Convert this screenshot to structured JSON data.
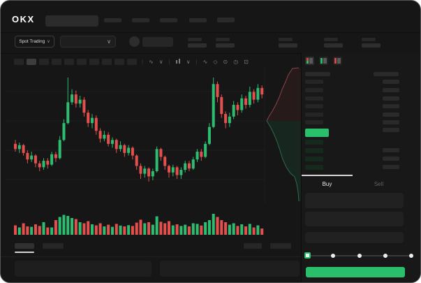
{
  "window": {
    "app": "OKX trading terminal (loading skeleton)",
    "colors": {
      "up_green": "#2ebd70",
      "down_red": "#e4504e",
      "accent_green": "#2abf6b",
      "bid_row_green": "#152a1d",
      "placeholder_gray": "#2a2a2a",
      "chart_bg": "#141414",
      "panel_bg": "#181818",
      "text_primary": "#e8e8e8",
      "text_muted": "#5f5f5f"
    }
  },
  "topbar": {
    "logo": "OKX",
    "search_placeholder_shown": "",
    "nav_placeholder_count": 4,
    "right_placeholder_count": 1
  },
  "market_bar": {
    "market_type_label": "Spot Trading",
    "market_type_chevron": "∨",
    "pair_select_chevron": "∨",
    "stat_placeholder_groups": 5
  },
  "chart_toolbar": {
    "timeframe_buttons": [
      {
        "active": false
      },
      {
        "active": true
      },
      {
        "active": false
      },
      {
        "active": false
      },
      {
        "active": false
      },
      {
        "active": false
      },
      {
        "active": false
      },
      {
        "active": false
      },
      {
        "active": false
      },
      {
        "active": false
      }
    ],
    "icons": [
      {
        "name": "separator",
        "glyph": "|"
      },
      {
        "name": "indicator-ma-icon",
        "glyph": "∿"
      },
      {
        "name": "chevron-down-icon",
        "glyph": "∨"
      },
      {
        "name": "separator",
        "glyph": "|"
      },
      {
        "name": "candle-type-icon",
        "glyph": "CANDLE"
      },
      {
        "name": "chevron-down-icon",
        "glyph": "∨"
      },
      {
        "name": "separator",
        "glyph": "|"
      },
      {
        "name": "line-tool-icon",
        "glyph": "∿"
      },
      {
        "name": "measure-icon",
        "glyph": "◇"
      },
      {
        "name": "camera-icon",
        "glyph": "⊙"
      },
      {
        "name": "settings-clock-icon",
        "glyph": "◷"
      },
      {
        "name": "fullscreen-icon",
        "glyph": "⊡"
      }
    ]
  },
  "chart_data": [
    {
      "type": "candlestick",
      "title": "",
      "xlabel": "",
      "ylabel": "",
      "axes_labeled": false,
      "grid": "faint horizontal lines",
      "note": "skeleton chart, no numeric axis labels visible; values are normalized 0-100 price scale read from pixel positions",
      "ylim": [
        0,
        100
      ],
      "colors": {
        "up": "#2ebd70",
        "down": "#e4504e"
      },
      "candles_ochl": [
        [
          42,
          38,
          45,
          36
        ],
        [
          38,
          41,
          43,
          35
        ],
        [
          41,
          35,
          42,
          33
        ],
        [
          35,
          30,
          37,
          27
        ],
        [
          30,
          33,
          36,
          28
        ],
        [
          33,
          27,
          34,
          24
        ],
        [
          27,
          24,
          29,
          21
        ],
        [
          24,
          29,
          31,
          22
        ],
        [
          29,
          26,
          31,
          23
        ],
        [
          26,
          34,
          36,
          25
        ],
        [
          34,
          31,
          36,
          28
        ],
        [
          31,
          45,
          48,
          30
        ],
        [
          45,
          58,
          61,
          44
        ],
        [
          58,
          74,
          93,
          57
        ],
        [
          74,
          80,
          84,
          72
        ],
        [
          80,
          73,
          83,
          70
        ],
        [
          73,
          76,
          79,
          70
        ],
        [
          76,
          66,
          78,
          63
        ],
        [
          66,
          58,
          68,
          55
        ],
        [
          58,
          62,
          65,
          54
        ],
        [
          62,
          52,
          64,
          49
        ],
        [
          52,
          46,
          54,
          43
        ],
        [
          46,
          49,
          52,
          44
        ],
        [
          49,
          42,
          51,
          40
        ],
        [
          42,
          45,
          47,
          39
        ],
        [
          45,
          38,
          46,
          35
        ],
        [
          38,
          41,
          44,
          36
        ],
        [
          41,
          35,
          42,
          32
        ],
        [
          35,
          39,
          41,
          33
        ],
        [
          39,
          33,
          40,
          30
        ],
        [
          33,
          25,
          34,
          22
        ],
        [
          25,
          19,
          27,
          15
        ],
        [
          19,
          23,
          25,
          16
        ],
        [
          23,
          17,
          24,
          13
        ],
        [
          17,
          21,
          23,
          14
        ],
        [
          21,
          38,
          40,
          20
        ],
        [
          38,
          32,
          39,
          29
        ],
        [
          32,
          25,
          33,
          22
        ],
        [
          25,
          20,
          26,
          16
        ],
        [
          20,
          24,
          26,
          17
        ],
        [
          24,
          18,
          25,
          15
        ],
        [
          18,
          22,
          24,
          15
        ],
        [
          22,
          27,
          29,
          20
        ],
        [
          27,
          23,
          29,
          21
        ],
        [
          23,
          30,
          32,
          22
        ],
        [
          30,
          36,
          38,
          28
        ],
        [
          36,
          32,
          38,
          29
        ],
        [
          32,
          42,
          44,
          31
        ],
        [
          42,
          55,
          58,
          41
        ],
        [
          55,
          88,
          93,
          54
        ],
        [
          88,
          78,
          90,
          74
        ],
        [
          78,
          65,
          80,
          62
        ],
        [
          65,
          58,
          67,
          54
        ],
        [
          58,
          63,
          66,
          55
        ],
        [
          63,
          72,
          75,
          61
        ],
        [
          72,
          68,
          74,
          64
        ],
        [
          68,
          77,
          80,
          66
        ],
        [
          77,
          72,
          79,
          69
        ],
        [
          72,
          82,
          86,
          70
        ],
        [
          82,
          76,
          84,
          73
        ],
        [
          76,
          85,
          88,
          74
        ],
        [
          85,
          80,
          87,
          77
        ]
      ],
      "volume_pct": [
        45,
        35,
        55,
        40,
        38,
        50,
        42,
        60,
        35,
        35,
        70,
        85,
        95,
        90,
        80,
        75,
        60,
        55,
        65,
        50,
        45,
        55,
        40,
        48,
        38,
        52,
        44,
        40,
        46,
        42,
        58,
        72,
        55,
        60,
        48,
        88,
        62,
        55,
        65,
        45,
        50,
        42,
        48,
        40,
        55,
        52,
        44,
        60,
        70,
        100,
        85,
        70,
        60,
        48,
        55,
        42,
        50,
        40,
        52,
        35,
        45,
        30
      ]
    },
    {
      "type": "area",
      "subtype": "vertical-depth",
      "note": "order-book depth silhouette right of candles; red asks above mid, green bids below; points in px",
      "asks_line": [
        [
          381,
          172
        ],
        [
          384,
          166
        ],
        [
          389,
          158
        ],
        [
          394,
          149
        ],
        [
          399,
          138
        ],
        [
          403,
          127
        ],
        [
          408,
          116
        ],
        [
          412,
          106
        ],
        [
          418,
          97
        ],
        [
          427,
          96
        ]
      ],
      "bids_line": [
        [
          381,
          172
        ],
        [
          386,
          180
        ],
        [
          391,
          190
        ],
        [
          396,
          202
        ],
        [
          400,
          214
        ],
        [
          404,
          227
        ],
        [
          409,
          238
        ],
        [
          415,
          247
        ],
        [
          421,
          252
        ],
        [
          424,
          262
        ],
        [
          426,
          274
        ],
        [
          427,
          287
        ]
      ],
      "ask_fill": "rgba(190,70,75,0.10)",
      "bid_fill": "rgba(42,191,107,0.10)",
      "ask_line_color": "#8c4348",
      "bid_line_color": "#2f6b4c"
    }
  ],
  "orderbook": {
    "view_icons": [
      {
        "name": "orderbook-combined-view-icon",
        "active": true,
        "rows": [
          "#d9494b",
          "#d9494b",
          "#2abf6b",
          "#2abf6b"
        ]
      },
      {
        "name": "orderbook-bids-view-icon",
        "active": false,
        "rows": [
          "#2abf6b",
          "#2abf6b",
          "#2abf6b",
          "#2abf6b"
        ]
      },
      {
        "name": "orderbook-asks-view-icon",
        "active": false,
        "rows": [
          "#d9494b",
          "#d9494b",
          "#d9494b",
          "#d9494b"
        ]
      }
    ],
    "header_placeholder_bars": 2,
    "ask_rows": 6,
    "bid_rows": 4,
    "last_price": {
      "direction": "up",
      "highlight_color": "#2abf6b",
      "value_shown": ""
    }
  },
  "trade_panel": {
    "tabs": [
      {
        "label": "Buy",
        "active": true
      },
      {
        "label": "Sell",
        "active": false
      }
    ],
    "input_placeholders": 3,
    "amount_slider": {
      "positions": 5,
      "active_index": 0
    },
    "submit_button": {
      "label_shown": "",
      "color": "#2abf6b"
    }
  },
  "bottom_bar": {
    "tab_placeholders": 2,
    "active_tab_index": 0,
    "right_button_placeholders": 2,
    "panel_placeholders": 2
  }
}
